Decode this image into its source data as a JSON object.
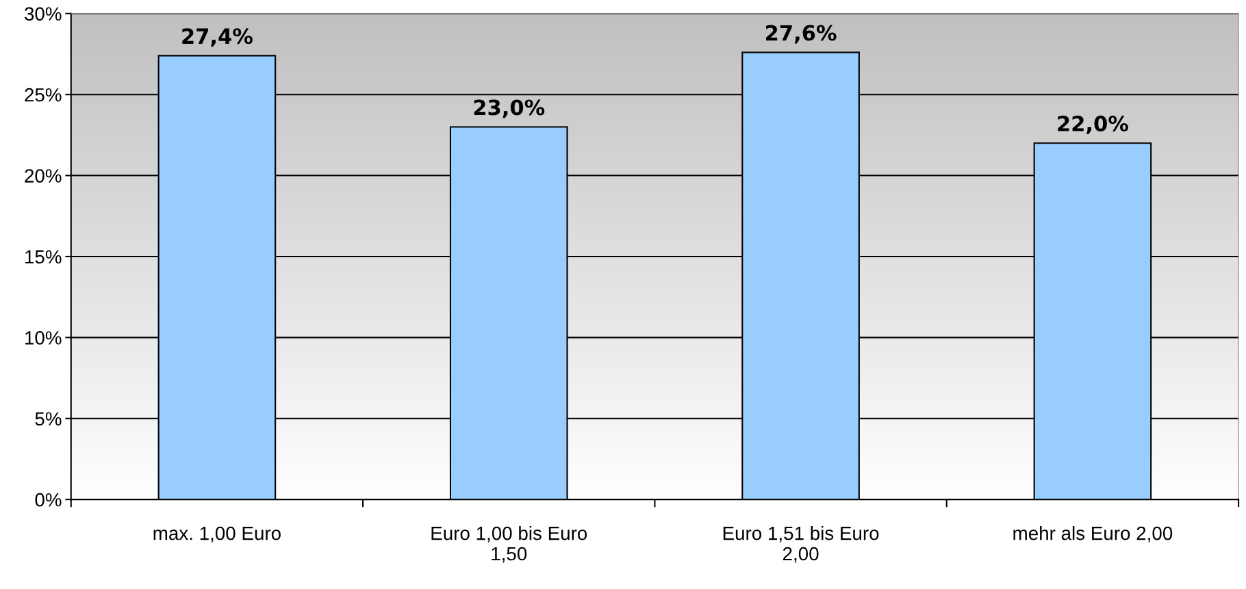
{
  "chart_data": {
    "type": "bar",
    "categories": [
      "max. 1,00 Euro",
      "Euro 1,00 bis Euro\n1,50",
      "Euro 1,51 bis Euro\n2,00",
      "mehr als Euro 2,00"
    ],
    "values": [
      27.4,
      23.0,
      27.6,
      22.0
    ],
    "value_labels": [
      "27,4%",
      "23,0%",
      "27,6%",
      "22,0%"
    ],
    "color": "#99ccff",
    "ylim": [
      0,
      30
    ],
    "yticks": [
      {
        "value": 0,
        "label": "0%"
      },
      {
        "value": 5,
        "label": "5%"
      },
      {
        "value": 10,
        "label": "10%"
      },
      {
        "value": 15,
        "label": "15%"
      },
      {
        "value": 20,
        "label": "20%"
      },
      {
        "value": 25,
        "label": "25%"
      },
      {
        "value": 30,
        "label": "30%"
      }
    ],
    "grid": "y",
    "legend": false
  }
}
